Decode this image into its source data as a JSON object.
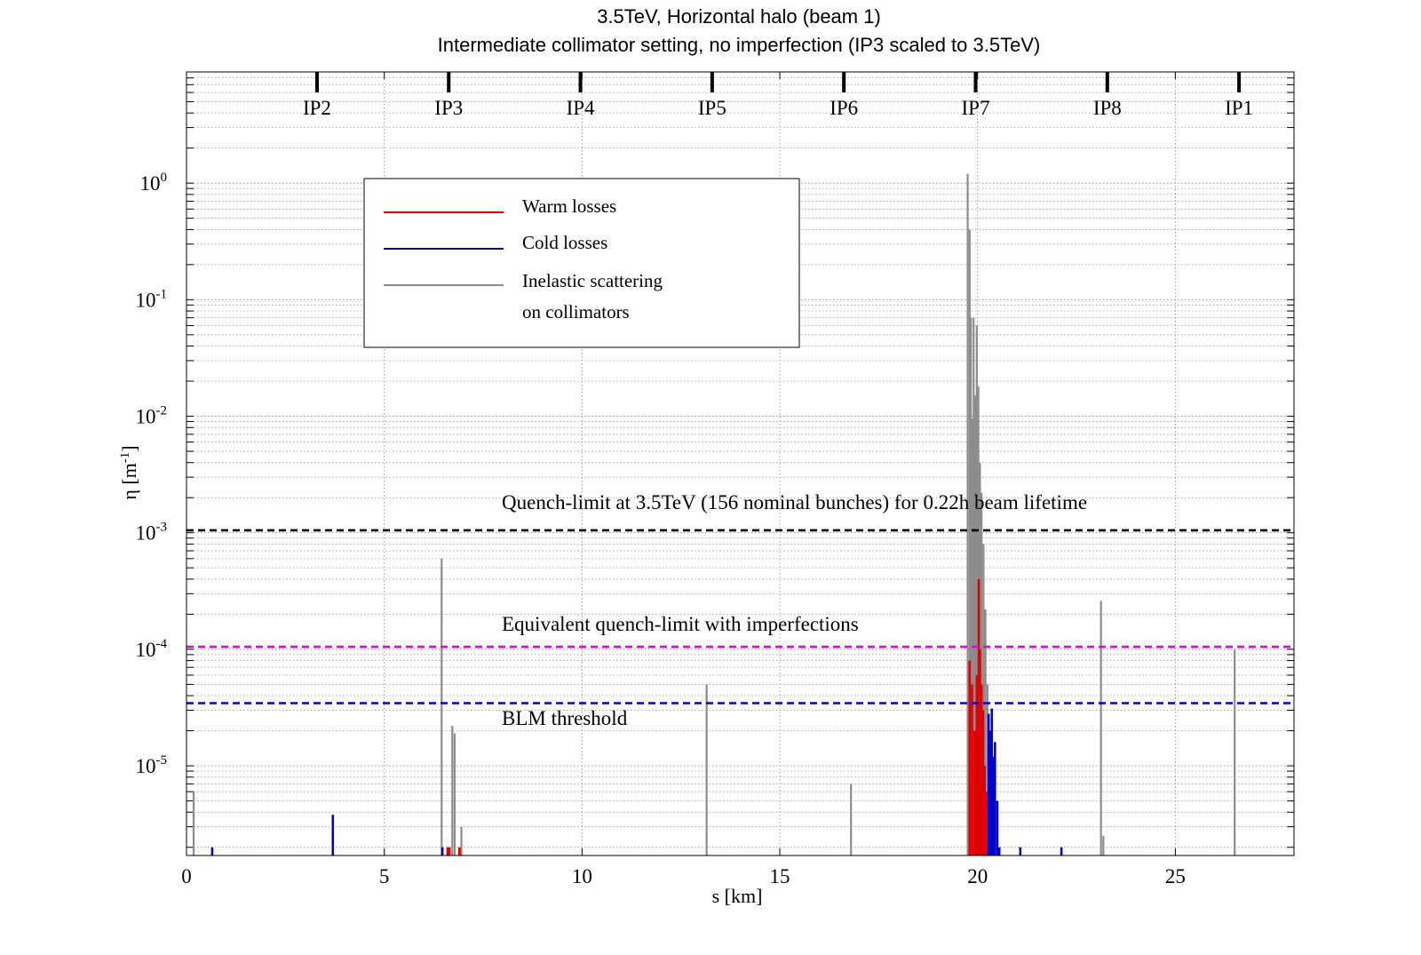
{
  "chart_data": {
    "type": "bar",
    "title": "3.5TeV, Horizontal halo (beam 1)",
    "subtitle": "Intermediate collimator setting, no imperfection (IP3 scaled to 3.5TeV)",
    "xlabel": "s [km]",
    "ylabel": "η [m",
    "ylabel_sup": "-1",
    "ylabel_close": "]",
    "xlim": [
      0,
      28
    ],
    "ylim": [
      1.7e-06,
      9.0
    ],
    "yscale": "log",
    "grid": true,
    "legend_position": "upper-left",
    "x_ticks": [
      {
        "value": 0,
        "label": "0"
      },
      {
        "value": 5,
        "label": "5"
      },
      {
        "value": 10,
        "label": "10"
      },
      {
        "value": 15,
        "label": "15"
      },
      {
        "value": 20,
        "label": "20"
      },
      {
        "value": 25,
        "label": "25"
      }
    ],
    "y_ticks": [
      {
        "value": 1e-05,
        "base": "10",
        "exp": "-5"
      },
      {
        "value": 0.0001,
        "base": "10",
        "exp": "-4"
      },
      {
        "value": 0.001,
        "base": "10",
        "exp": "-3"
      },
      {
        "value": 0.01,
        "base": "10",
        "exp": "-2"
      },
      {
        "value": 0.1,
        "base": "10",
        "exp": "-1"
      },
      {
        "value": 1.0,
        "base": "10",
        "exp": "0"
      }
    ],
    "ip_markers": [
      {
        "label": "IP2",
        "s": 3.3
      },
      {
        "label": "IP3",
        "s": 6.63
      },
      {
        "label": "IP4",
        "s": 9.96
      },
      {
        "label": "IP5",
        "s": 13.29
      },
      {
        "label": "IP6",
        "s": 16.62
      },
      {
        "label": "IP7",
        "s": 19.95
      },
      {
        "label": "IP8",
        "s": 23.28
      },
      {
        "label": "IP1",
        "s": 26.61
      }
    ],
    "legend": [
      {
        "label": "Warm losses",
        "color": "#e00000"
      },
      {
        "label": "Cold losses",
        "color": "#0000cc"
      },
      {
        "label": "Inelastic scattering",
        "label2": "on collimators",
        "color": "#8c8c8c"
      }
    ],
    "thresholds": [
      {
        "label": "Quench-limit at 3.5TeV (156 nominal bunches) for 0.22h beam lifetime",
        "value": 0.00105,
        "color": "#000000"
      },
      {
        "label": "Equivalent quench-limit with imperfections",
        "value": 0.000105,
        "color": "#e600e6"
      },
      {
        "label": "BLM threshold",
        "value": 3.45e-05,
        "color": "#0000cc"
      }
    ],
    "series": [
      {
        "name": "Inelastic scattering on collimators",
        "color": "#8c8c8c",
        "points": [
          [
            0.18,
            6e-06
          ],
          [
            6.45,
            0.0006
          ],
          [
            6.72,
            2.2e-05
          ],
          [
            6.78,
            1.9e-05
          ],
          [
            6.95,
            3e-06
          ],
          [
            13.15,
            5e-05
          ],
          [
            16.8,
            7e-06
          ],
          [
            19.75,
            1.2
          ],
          [
            19.8,
            0.4
          ],
          [
            19.83,
            0.07
          ],
          [
            19.87,
            0.0095
          ],
          [
            19.9,
            0.07
          ],
          [
            19.94,
            0.015
          ],
          [
            19.98,
            0.06
          ],
          [
            20.02,
            0.018
          ],
          [
            20.06,
            0.004
          ],
          [
            20.1,
            0.0022
          ],
          [
            20.15,
            0.0008
          ],
          [
            20.2,
            0.00022
          ],
          [
            20.25,
            5e-05
          ],
          [
            23.12,
            0.00026
          ],
          [
            23.18,
            2.5e-06
          ],
          [
            26.5,
            0.0001
          ]
        ]
      },
      {
        "name": "Warm losses",
        "color": "#e00000",
        "points": [
          [
            6.6,
            2e-06
          ],
          [
            6.65,
            2e-06
          ],
          [
            6.9,
            2e-06
          ],
          [
            19.8,
            8e-05
          ],
          [
            19.86,
            5e-05
          ],
          [
            19.92,
            2e-05
          ],
          [
            19.98,
            6e-05
          ],
          [
            20.03,
            0.0004
          ],
          [
            20.06,
            0.0001
          ],
          [
            20.1,
            5e-05
          ],
          [
            20.14,
            3e-05
          ],
          [
            20.18,
            1e-05
          ],
          [
            20.22,
            6e-06
          ]
        ]
      },
      {
        "name": "Cold losses",
        "color": "#0000cc",
        "points": [
          [
            0.65,
            2e-06
          ],
          [
            3.7,
            3.8e-06
          ],
          [
            6.47,
            2e-06
          ],
          [
            20.28,
            2.8e-05
          ],
          [
            20.33,
            2e-05
          ],
          [
            20.36,
            3.1e-05
          ],
          [
            20.41,
            1.2e-05
          ],
          [
            20.44,
            1.6e-05
          ],
          [
            20.5,
            5e-06
          ],
          [
            20.55,
            2e-06
          ],
          [
            21.08,
            2e-06
          ],
          [
            22.12,
            2e-06
          ]
        ]
      }
    ]
  }
}
